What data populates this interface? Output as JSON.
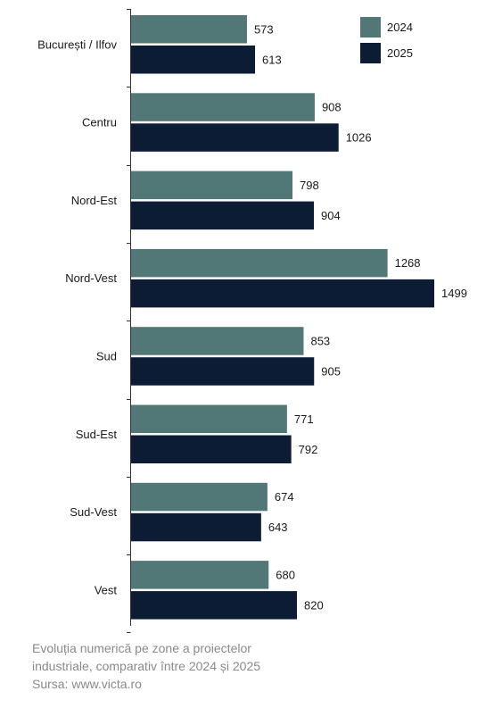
{
  "chart_data": {
    "type": "bar",
    "orientation": "horizontal",
    "categories": [
      "București / Ilfov",
      "Centru",
      "Nord-Est",
      "Nord-Vest",
      "Sud",
      "Sud-Est",
      "Sud-Vest",
      "Vest"
    ],
    "series": [
      {
        "name": "2024",
        "color": "#517877",
        "values": [
          573,
          908,
          798,
          1268,
          853,
          771,
          674,
          680
        ]
      },
      {
        "name": "2025",
        "color": "#0c1c35",
        "values": [
          613,
          1026,
          904,
          1499,
          905,
          792,
          643,
          820
        ]
      }
    ],
    "xlim": [
      0,
      1500
    ],
    "grid": false,
    "legend_position": "top-right",
    "data_labels": true
  },
  "caption": {
    "line1": "Evoluția numerică pe zone a proiectelor",
    "line2": "industriale, comparativ între 2024 și 2025",
    "source": "Sursa: www.victa.ro"
  }
}
